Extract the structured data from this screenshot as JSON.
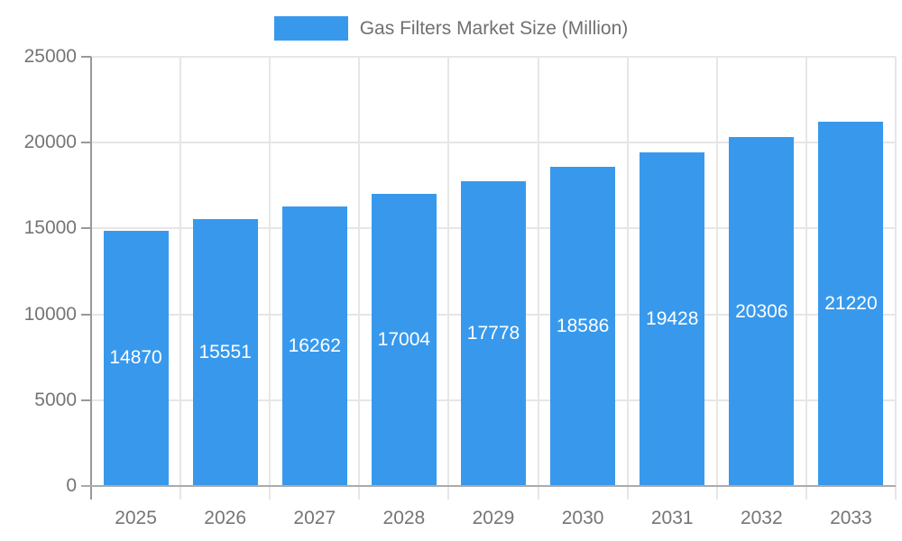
{
  "chart_data": {
    "type": "bar",
    "title": "Gas Filters Market Size (Million)",
    "legend": [
      "Gas Filters Market Size (Million)"
    ],
    "legend_position": "top-center",
    "categories": [
      "2025",
      "2026",
      "2027",
      "2028",
      "2029",
      "2030",
      "2031",
      "2032",
      "2033"
    ],
    "values": [
      14870,
      15551,
      16262,
      17004,
      17778,
      18586,
      19428,
      20306,
      21220
    ],
    "value_labels_inside_bars": true,
    "xlabel": "",
    "ylabel": "",
    "ylim": [
      0,
      25000
    ],
    "yticks": [
      0,
      5000,
      10000,
      15000,
      20000,
      25000
    ],
    "grid": true
  },
  "colors": {
    "bar": "#3899EC",
    "bar_value_label": "#ffffff",
    "gridline": "#e6e6e6",
    "axis_line": "#999999",
    "baseline": "#ababab",
    "tick_label": "#757575",
    "legend_text": "#707070",
    "background": "#ffffff"
  }
}
